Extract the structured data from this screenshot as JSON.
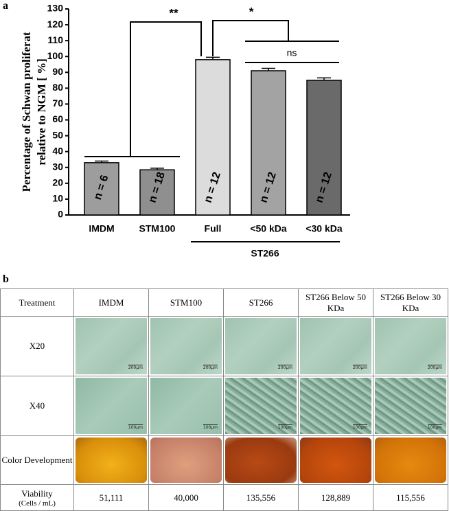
{
  "panel_labels": [
    "a",
    "b"
  ],
  "chart_data": {
    "type": "bar",
    "ylabel": [
      "Percentage of Schwan proliferat",
      "relative to NGM [ %]"
    ],
    "categories": [
      "IMDM",
      "STM100",
      "Full",
      "<50 kDa",
      "<30 kDa"
    ],
    "values": [
      33,
      28.5,
      98,
      91,
      85
    ],
    "errors": [
      1,
      1,
      1.5,
      1.5,
      1.5
    ],
    "colors": [
      "#9d9d9d",
      "#8f8f8f",
      "#dcdcdc",
      "#a3a3a3",
      "#6a6a6a"
    ],
    "bar_labels": [
      "n = 6",
      "n = 18",
      "n = 12",
      "n = 12",
      "n = 12"
    ],
    "group_label": "ST266",
    "annotations": [
      "**",
      "*",
      "ns"
    ],
    "ylim": [
      0,
      130
    ],
    "yticks": [
      0,
      10,
      20,
      30,
      40,
      50,
      60,
      70,
      80,
      90,
      100,
      110,
      120,
      130
    ]
  },
  "table": {
    "header": [
      "Treatment",
      "IMDM",
      "STM100",
      "ST266",
      "ST266 Below 50 KDa",
      "ST266 Below 30 KDa"
    ],
    "row_labels": [
      "X20",
      "X40",
      "Color Development"
    ],
    "scale_bars": [
      "200μm",
      "100μm"
    ],
    "viability_label": [
      "Viability",
      "(Cells / mL)"
    ],
    "viability": [
      "51,111",
      "40,000",
      "135,556",
      "128,889",
      "115,556"
    ]
  }
}
